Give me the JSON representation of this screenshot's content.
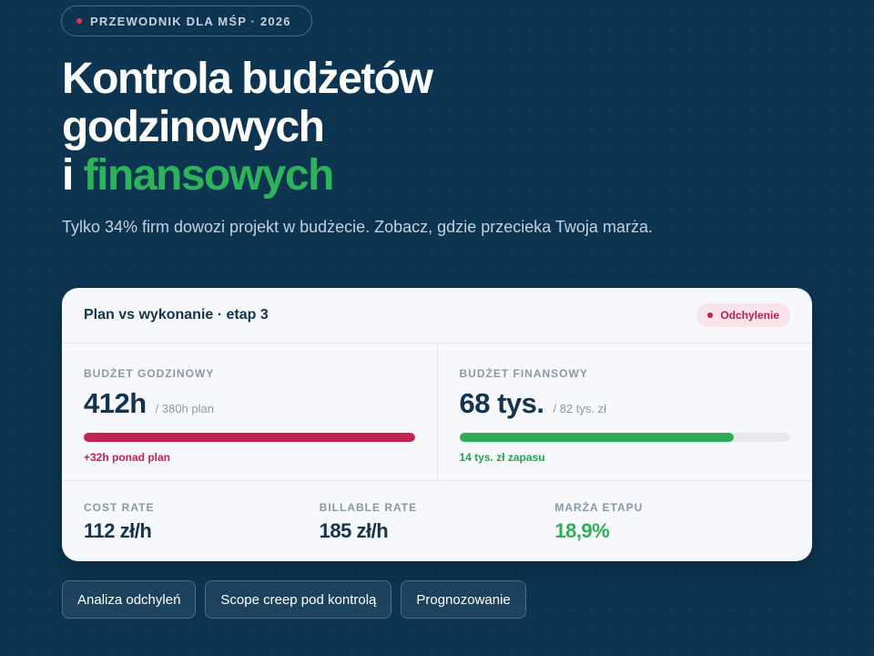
{
  "badge": {
    "label": "PRZEWODNIK DLA MŚP · 2026"
  },
  "hero": {
    "title_line1": "Kontrola budżetów",
    "title_line2": "godzinowych",
    "title_line3_prefix": "i ",
    "title_line3_accent": "finansowych",
    "subtitle": "Tylko 34% firm dowozi projekt w budżecie. Zobacz, gdzie przecieka Twoja marża."
  },
  "card": {
    "title": "Plan vs wykonanie · etap 3",
    "status": "Odchylenie",
    "hours": {
      "label": "BUDŻET GODZINOWY",
      "value": "412h",
      "plan": "/ 380h plan",
      "progress": 1.0,
      "note": "+32h ponad plan"
    },
    "finance": {
      "label": "BUDŻET FINANSOWY",
      "value": "68 tys.",
      "plan": "/ 82 tys. zł",
      "progress": 0.83,
      "note": "14 tys. zł zapasu"
    },
    "rates": [
      {
        "label": "COST RATE",
        "value": "112 zł/h"
      },
      {
        "label": "BILLABLE RATE",
        "value": "185 zł/h"
      },
      {
        "label": "MARŻA ETAPU",
        "value": "18,9%"
      }
    ]
  },
  "chips": [
    "Analiza odchyleń",
    "Scope creep pod kontrolą",
    "Prognozowanie"
  ],
  "colors": {
    "background": "#0d3552",
    "accent_green": "#2fae57",
    "alert_red": "#c2234f"
  }
}
